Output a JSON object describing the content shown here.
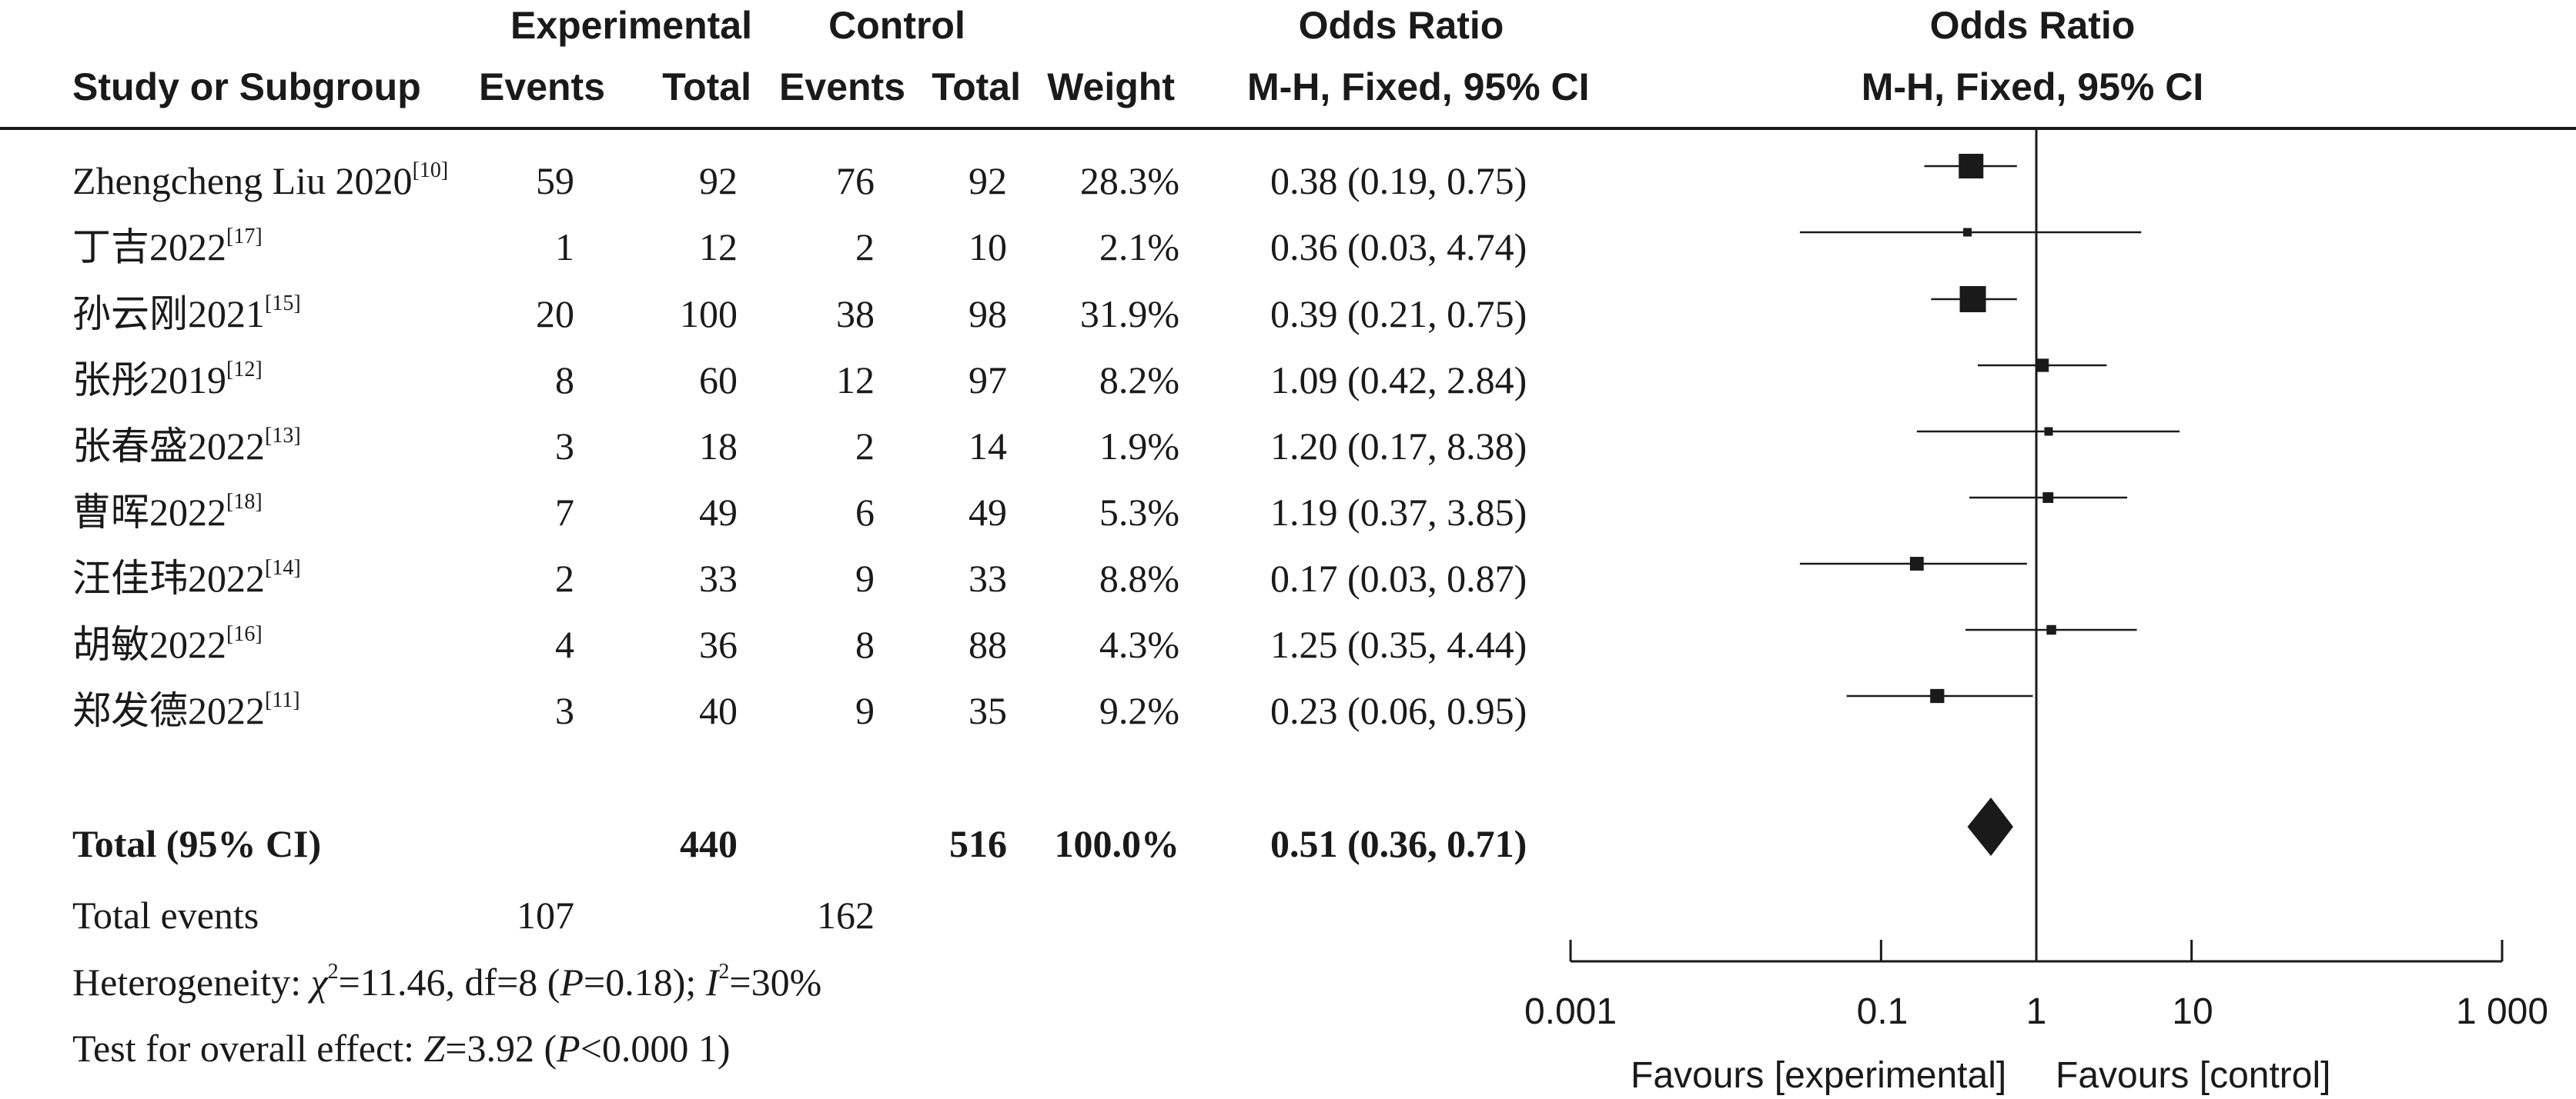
{
  "header": {
    "group_experimental": "Experimental",
    "group_control": "Control",
    "or_title_left": "Odds Ratio",
    "or_title_right": "Odds Ratio",
    "study_col": "Study or Subgroup",
    "events_exp": "Events",
    "total_exp": "Total",
    "events_ctrl": "Events",
    "total_ctrl": "Total",
    "weight": "Weight",
    "method_left": "M-H, Fixed, 95% CI",
    "method_right": "M-H, Fixed, 95% CI"
  },
  "studies": [
    {
      "name": "Zhengcheng Liu 2020",
      "ref": "[10]",
      "exp_events": "59",
      "exp_total": "92",
      "ctrl_events": "76",
      "ctrl_total": "92",
      "weight": "28.3%",
      "ci_text": "0.38 (0.19, 0.75)"
    },
    {
      "name": "丁吉2022",
      "ref": "[17]",
      "exp_events": "1",
      "exp_total": "12",
      "ctrl_events": "2",
      "ctrl_total": "10",
      "weight": "2.1%",
      "ci_text": "0.36 (0.03, 4.74)"
    },
    {
      "name": "孙云刚2021",
      "ref": "[15]",
      "exp_events": "20",
      "exp_total": "100",
      "ctrl_events": "38",
      "ctrl_total": "98",
      "weight": "31.9%",
      "ci_text": "0.39 (0.21, 0.75)"
    },
    {
      "name": "张彤2019",
      "ref": "[12]",
      "exp_events": "8",
      "exp_total": "60",
      "ctrl_events": "12",
      "ctrl_total": "97",
      "weight": "8.2%",
      "ci_text": "1.09 (0.42, 2.84)"
    },
    {
      "name": "张春盛2022",
      "ref": "[13]",
      "exp_events": "3",
      "exp_total": "18",
      "ctrl_events": "2",
      "ctrl_total": "14",
      "weight": "1.9%",
      "ci_text": "1.20 (0.17, 8.38)"
    },
    {
      "name": "曹晖2022",
      "ref": "[18]",
      "exp_events": "7",
      "exp_total": "49",
      "ctrl_events": "6",
      "ctrl_total": "49",
      "weight": "5.3%",
      "ci_text": "1.19 (0.37, 3.85)"
    },
    {
      "name": "汪佳玮2022",
      "ref": "[14]",
      "exp_events": "2",
      "exp_total": "33",
      "ctrl_events": "9",
      "ctrl_total": "33",
      "weight": "8.8%",
      "ci_text": "0.17 (0.03, 0.87)"
    },
    {
      "name": "胡敏2022",
      "ref": "[16]",
      "exp_events": "4",
      "exp_total": "36",
      "ctrl_events": "8",
      "ctrl_total": "88",
      "weight": "4.3%",
      "ci_text": "1.25 (0.35, 4.44)"
    },
    {
      "name": "郑发德2022",
      "ref": "[11]",
      "exp_events": "3",
      "exp_total": "40",
      "ctrl_events": "9",
      "ctrl_total": "35",
      "weight": "9.2%",
      "ci_text": "0.23 (0.06, 0.95)"
    }
  ],
  "total": {
    "label": "Total (95% CI)",
    "exp_total": "440",
    "ctrl_total": "516",
    "weight": "100.0%",
    "ci_text": "0.51 (0.36, 0.71)"
  },
  "total_events": {
    "label": "Total events",
    "exp": "107",
    "ctrl": "162"
  },
  "heterogeneity": {
    "prefix": "Heterogeneity: ",
    "chi_symbol": "χ",
    "chi_text": "=11.46, df=8 (",
    "p_letter": "P",
    "p_text": "=0.18); ",
    "i_letter": "I",
    "i_text": "=30%"
  },
  "overall_effect": {
    "prefix": "Test for overall effect: ",
    "z_letter": "Z",
    "z_text": "=3.92 (",
    "p_letter": "P",
    "p_text": "<0.000 1)"
  },
  "axis": {
    "tick_labels": [
      "0.001",
      "0.1",
      "1",
      "10",
      "1 000"
    ],
    "favours_left": "Favours [experimental]",
    "favours_right": "Favours [control]"
  },
  "chart_data": {
    "type": "forest",
    "x_scale": "log",
    "xlim": [
      0.001,
      1000
    ],
    "ticks": [
      0.001,
      0.1,
      1,
      10,
      1000
    ],
    "reference_line": 1,
    "points": [
      {
        "study": "Zhengcheng Liu 2020",
        "or": 0.38,
        "lower": 0.19,
        "upper": 0.75,
        "weight": 28.3
      },
      {
        "study": "丁吉2022",
        "or": 0.36,
        "lower": 0.03,
        "upper": 4.74,
        "weight": 2.1
      },
      {
        "study": "孙云刚2021",
        "or": 0.39,
        "lower": 0.21,
        "upper": 0.75,
        "weight": 31.9
      },
      {
        "study": "张彤2019",
        "or": 1.09,
        "lower": 0.42,
        "upper": 2.84,
        "weight": 8.2
      },
      {
        "study": "张春盛2022",
        "or": 1.2,
        "lower": 0.17,
        "upper": 8.38,
        "weight": 1.9
      },
      {
        "study": "曹晖2022",
        "or": 1.19,
        "lower": 0.37,
        "upper": 3.85,
        "weight": 5.3
      },
      {
        "study": "汪佳玮2022",
        "or": 0.17,
        "lower": 0.03,
        "upper": 0.87,
        "weight": 8.8
      },
      {
        "study": "胡敏2022",
        "or": 1.25,
        "lower": 0.35,
        "upper": 4.44,
        "weight": 4.3
      },
      {
        "study": "郑发德2022",
        "or": 0.23,
        "lower": 0.06,
        "upper": 0.95,
        "weight": 9.2
      }
    ],
    "summary": {
      "label": "Total (95% CI)",
      "or": 0.51,
      "lower": 0.36,
      "upper": 0.71
    }
  }
}
